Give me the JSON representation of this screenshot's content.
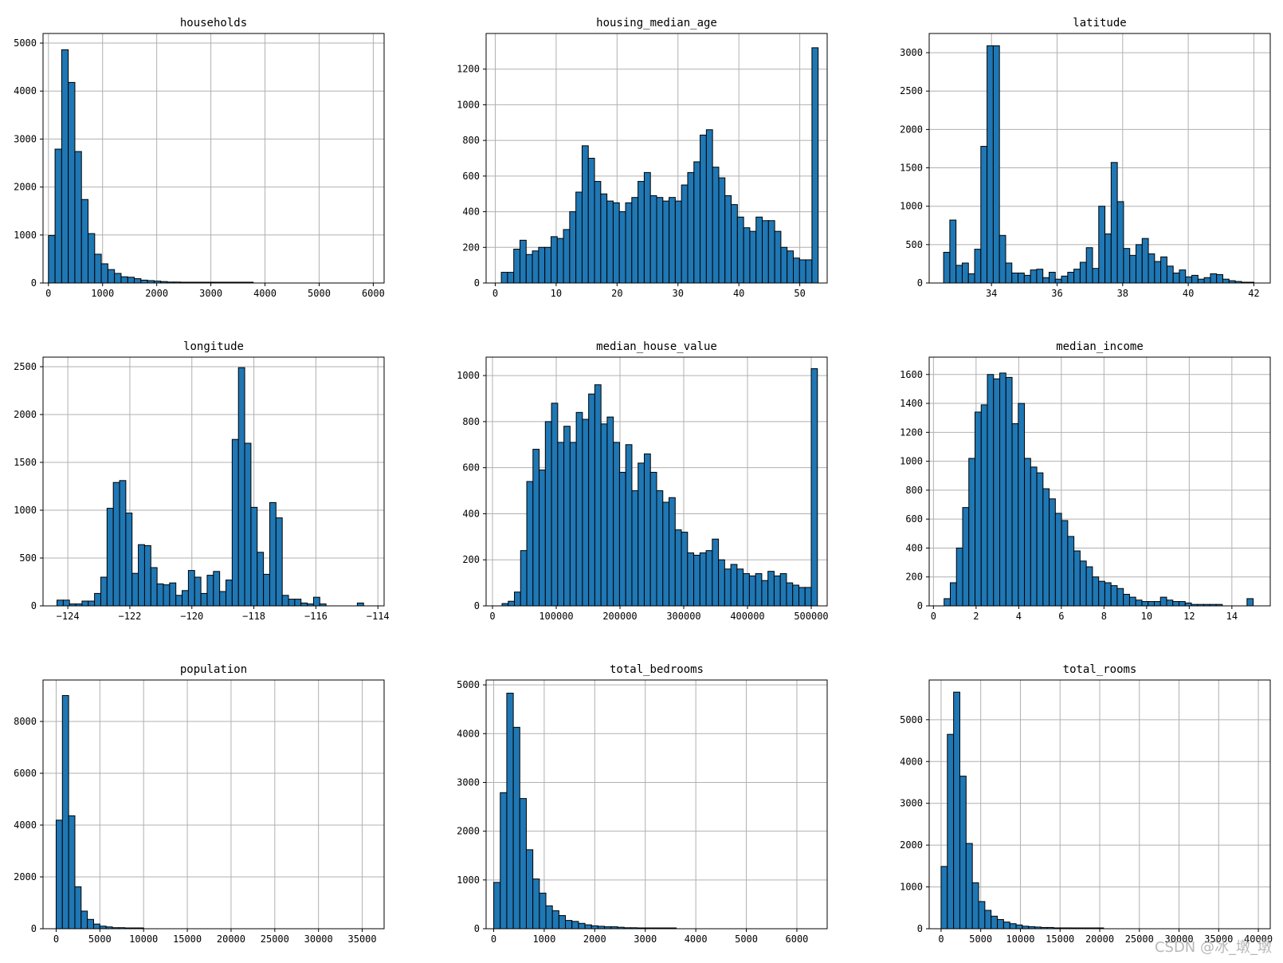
{
  "watermark": "CSDN @冰_墩_墩",
  "style": {
    "bar_fill": "#1f77b4",
    "bar_edge": "#000000",
    "grid": "#b0b0b0",
    "axis": "#000000"
  },
  "chart_data": [
    {
      "type": "bar",
      "title": "households",
      "xlim": [
        -100,
        6200
      ],
      "ylim": [
        0,
        5200
      ],
      "xticks": [
        0,
        1000,
        2000,
        3000,
        4000,
        5000,
        6000
      ],
      "yticks": [
        0,
        1000,
        2000,
        3000,
        4000,
        5000
      ],
      "bin_start": 0,
      "bin_width": 122,
      "values": [
        990,
        2790,
        4860,
        4180,
        2740,
        1740,
        1030,
        600,
        400,
        280,
        200,
        130,
        120,
        90,
        60,
        50,
        40,
        30,
        20,
        20,
        10,
        10,
        10,
        10,
        10,
        10,
        10,
        10,
        10,
        10,
        10,
        0,
        0,
        0,
        0,
        0,
        0,
        0,
        0,
        0,
        0,
        0,
        0,
        0,
        0,
        0,
        0,
        0,
        0,
        0
      ]
    },
    {
      "type": "bar",
      "title": "housing_median_age",
      "xlim": [
        -1.5,
        54.5
      ],
      "ylim": [
        0,
        1400
      ],
      "xticks": [
        0,
        10,
        20,
        30,
        40,
        50
      ],
      "yticks": [
        0,
        200,
        400,
        600,
        800,
        1000,
        1200
      ],
      "bin_start": 1,
      "bin_width": 1.02,
      "values": [
        60,
        60,
        190,
        240,
        160,
        180,
        200,
        200,
        260,
        250,
        300,
        400,
        510,
        770,
        700,
        570,
        500,
        460,
        450,
        400,
        450,
        480,
        570,
        620,
        490,
        480,
        460,
        480,
        460,
        550,
        620,
        680,
        830,
        860,
        650,
        590,
        490,
        440,
        370,
        310,
        290,
        370,
        350,
        350,
        290,
        200,
        180,
        140,
        130,
        130,
        1320
      ]
    },
    {
      "type": "bar",
      "title": "latitude",
      "xlim": [
        32.1,
        42.5
      ],
      "ylim": [
        0,
        3250
      ],
      "xticks": [
        34,
        36,
        38,
        40,
        42
      ],
      "yticks": [
        0,
        500,
        1000,
        1500,
        2000,
        2500,
        3000
      ],
      "bin_start": 32.54,
      "bin_width": 0.1892,
      "values": [
        400,
        820,
        230,
        260,
        120,
        440,
        1780,
        3090,
        3090,
        620,
        260,
        130,
        130,
        100,
        170,
        180,
        70,
        140,
        50,
        90,
        140,
        180,
        270,
        460,
        190,
        1000,
        640,
        1570,
        1060,
        450,
        360,
        500,
        580,
        380,
        280,
        340,
        220,
        130,
        170,
        80,
        100,
        50,
        70,
        120,
        110,
        50,
        30,
        20,
        10,
        10
      ]
    },
    {
      "type": "bar",
      "title": "longitude",
      "xlim": [
        -124.8,
        -113.8
      ],
      "ylim": [
        0,
        2600
      ],
      "xticks": [
        -124,
        -122,
        -120,
        -118,
        -116,
        -114
      ],
      "yticks": [
        0,
        500,
        1000,
        1500,
        2000,
        2500
      ],
      "bin_start": -124.35,
      "bin_width": 0.2018,
      "values": [
        60,
        60,
        20,
        20,
        50,
        50,
        130,
        300,
        1020,
        1290,
        1310,
        970,
        340,
        640,
        630,
        400,
        230,
        220,
        240,
        110,
        160,
        370,
        300,
        130,
        320,
        360,
        150,
        270,
        1740,
        2490,
        1700,
        1030,
        560,
        330,
        1080,
        920,
        110,
        70,
        70,
        30,
        20,
        90,
        20,
        0,
        0,
        0,
        0,
        0,
        30,
        0
      ]
    },
    {
      "type": "bar",
      "title": "median_house_value",
      "xlim": [
        -10000,
        525000
      ],
      "ylim": [
        0,
        1080
      ],
      "xticks": [
        0,
        100000,
        200000,
        300000,
        400000,
        500000
      ],
      "yticks": [
        0,
        200,
        400,
        600,
        800,
        1000
      ],
      "bin_start": 14999,
      "bin_width": 9700,
      "values": [
        10,
        20,
        60,
        240,
        540,
        680,
        590,
        800,
        880,
        710,
        780,
        710,
        840,
        810,
        920,
        960,
        790,
        820,
        710,
        580,
        700,
        500,
        620,
        660,
        580,
        500,
        450,
        470,
        330,
        320,
        230,
        220,
        230,
        240,
        290,
        200,
        160,
        180,
        160,
        140,
        130,
        140,
        110,
        150,
        130,
        140,
        100,
        90,
        80,
        80,
        1030
      ]
    },
    {
      "type": "bar",
      "title": "median_income",
      "xlim": [
        -0.2,
        15.8
      ],
      "ylim": [
        0,
        1720
      ],
      "xticks": [
        0,
        2,
        4,
        6,
        8,
        10,
        12,
        14
      ],
      "yticks": [
        0,
        200,
        400,
        600,
        800,
        1000,
        1200,
        1400,
        1600
      ],
      "bin_start": 0.4999,
      "bin_width": 0.29,
      "values": [
        50,
        160,
        400,
        680,
        1020,
        1340,
        1390,
        1600,
        1570,
        1610,
        1580,
        1260,
        1400,
        1020,
        960,
        920,
        810,
        740,
        640,
        590,
        480,
        380,
        310,
        270,
        200,
        170,
        160,
        140,
        120,
        80,
        60,
        40,
        30,
        30,
        30,
        60,
        40,
        30,
        30,
        20,
        10,
        10,
        10,
        10,
        10,
        0,
        0,
        0,
        0,
        50
      ]
    },
    {
      "type": "bar",
      "title": "population",
      "xlim": [
        -1500,
        37500
      ],
      "ylim": [
        0,
        9600
      ],
      "xticks": [
        0,
        5000,
        10000,
        15000,
        20000,
        25000,
        30000,
        35000
      ],
      "yticks": [
        0,
        2000,
        4000,
        6000,
        8000
      ],
      "bin_start": 0,
      "bin_width": 714,
      "values": [
        4190,
        9000,
        4360,
        1620,
        680,
        360,
        180,
        100,
        70,
        40,
        40,
        30,
        20,
        10,
        0,
        0,
        0,
        0,
        0,
        0,
        0,
        0,
        0,
        0,
        0,
        0,
        0,
        0,
        0,
        0,
        0,
        0,
        0,
        0,
        0,
        0,
        0,
        0,
        0,
        0,
        0,
        0,
        0,
        0,
        0,
        0,
        0,
        0,
        0,
        0
      ]
    },
    {
      "type": "bar",
      "title": "total_bedrooms",
      "xlim": [
        -150,
        6600
      ],
      "ylim": [
        0,
        5100
      ],
      "xticks": [
        0,
        1000,
        2000,
        3000,
        4000,
        5000,
        6000
      ],
      "yticks": [
        0,
        1000,
        2000,
        3000,
        4000,
        5000
      ],
      "bin_start": 1,
      "bin_width": 129,
      "values": [
        950,
        2790,
        4830,
        4130,
        2670,
        1620,
        1020,
        730,
        470,
        370,
        270,
        170,
        150,
        110,
        80,
        60,
        50,
        40,
        40,
        30,
        20,
        20,
        10,
        10,
        10,
        10,
        10,
        10,
        0,
        0,
        0,
        0,
        0,
        0,
        0,
        0,
        0,
        0,
        0,
        0,
        0,
        0,
        0,
        0,
        0,
        0,
        0,
        0,
        0,
        0
      ]
    },
    {
      "type": "bar",
      "title": "total_rooms",
      "xlim": [
        -1500,
        41500
      ],
      "ylim": [
        0,
        5950
      ],
      "xticks": [
        0,
        5000,
        10000,
        15000,
        20000,
        25000,
        30000,
        35000,
        40000
      ],
      "yticks": [
        0,
        1000,
        2000,
        3000,
        4000,
        5000
      ],
      "bin_start": 2,
      "bin_width": 788,
      "values": [
        1490,
        4650,
        5660,
        3650,
        2040,
        1100,
        650,
        440,
        300,
        220,
        160,
        120,
        90,
        60,
        50,
        40,
        30,
        30,
        20,
        20,
        20,
        10,
        10,
        10,
        10,
        10,
        0,
        0,
        0,
        0,
        0,
        0,
        0,
        0,
        0,
        0,
        0,
        0,
        0,
        0,
        0,
        0,
        0,
        0,
        0,
        0,
        0,
        0,
        0,
        0
      ]
    }
  ]
}
